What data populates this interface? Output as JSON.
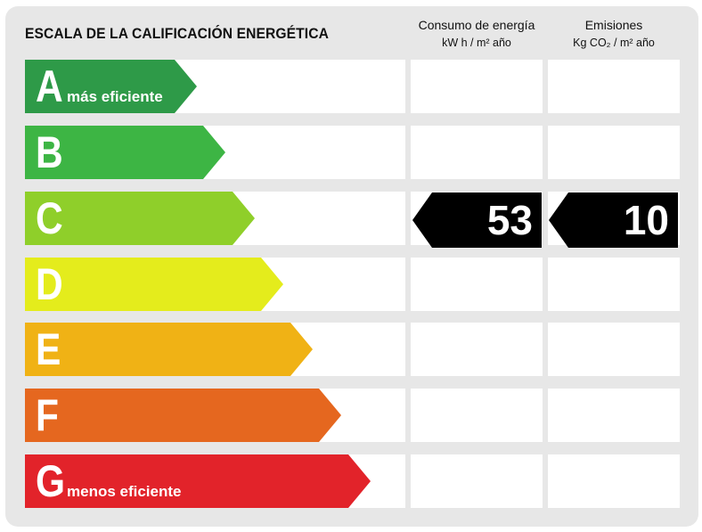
{
  "header": {
    "title": "ESCALA DE LA CALIFICACIÓN ENERGÉTICA",
    "consumo_title": "Consumo de energía",
    "consumo_unit": "kW h / m² año",
    "emisiones_title": "Emisiones",
    "emisiones_unit": "Kg CO₂ / m² año"
  },
  "bands": [
    {
      "letter": "A",
      "note": "más eficiente",
      "color": "#2e9a48"
    },
    {
      "letter": "B",
      "note": "",
      "color": "#3db544"
    },
    {
      "letter": "C",
      "note": "",
      "color": "#8fcf2a"
    },
    {
      "letter": "D",
      "note": "",
      "color": "#e4ec1c"
    },
    {
      "letter": "E",
      "note": "",
      "color": "#f0b215"
    },
    {
      "letter": "F",
      "note": "",
      "color": "#e5671f"
    },
    {
      "letter": "G",
      "note": "menos eficiente",
      "color": "#e2232a"
    }
  ],
  "rating": {
    "letter": "C",
    "consumo_value": "53",
    "emisiones_value": "10",
    "marker_color": "#000000"
  }
}
